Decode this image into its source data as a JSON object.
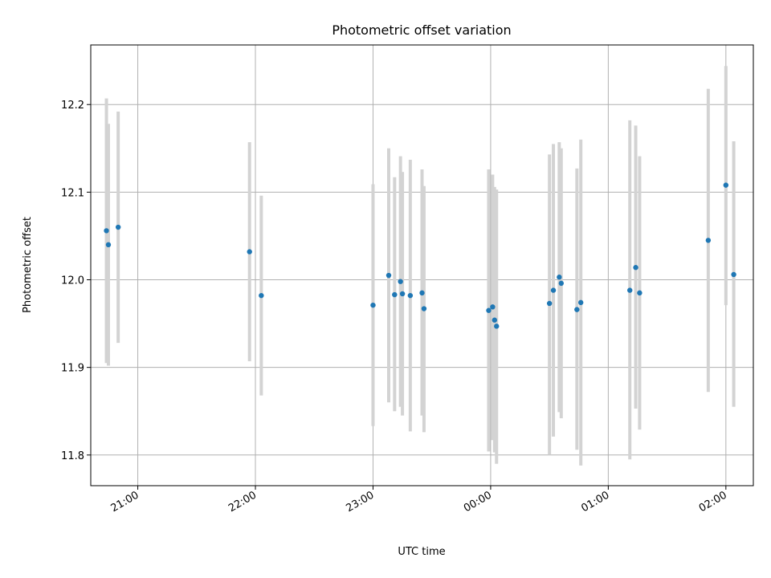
{
  "chart_data": {
    "type": "scatter",
    "title": "Photometric offset variation",
    "xlabel": "UTC time",
    "ylabel": "Photometric offset",
    "x_axis": "time",
    "x_range": [
      "20:36",
      "02:14"
    ],
    "ylim": [
      11.765,
      12.268
    ],
    "x_ticks": [
      {
        "t": "21:00",
        "label": "21:00"
      },
      {
        "t": "22:00",
        "label": "22:00"
      },
      {
        "t": "23:00",
        "label": "23:00"
      },
      {
        "t": "00:00",
        "label": "00:00"
      },
      {
        "t": "01:00",
        "label": "01:00"
      },
      {
        "t": "02:00",
        "label": "02:00"
      }
    ],
    "y_ticks": [
      {
        "v": 11.8,
        "label": "11.8"
      },
      {
        "v": 11.9,
        "label": "11.9"
      },
      {
        "v": 12.0,
        "label": "12.0"
      },
      {
        "v": 12.1,
        "label": "12.1"
      },
      {
        "v": 12.2,
        "label": "12.2"
      }
    ],
    "grid": true,
    "point_color": "#1f77b4",
    "errorbar_color": "#d3d3d3",
    "points": [
      {
        "t": "20:44",
        "y": 12.056,
        "lo": 11.905,
        "hi": 12.207
      },
      {
        "t": "20:45",
        "y": 12.04,
        "lo": 11.902,
        "hi": 12.178
      },
      {
        "t": "20:50",
        "y": 12.06,
        "lo": 11.928,
        "hi": 12.192
      },
      {
        "t": "21:57",
        "y": 12.032,
        "lo": 11.907,
        "hi": 12.157
      },
      {
        "t": "22:03",
        "y": 11.982,
        "lo": 11.868,
        "hi": 12.096
      },
      {
        "t": "23:00",
        "y": 11.971,
        "lo": 11.833,
        "hi": 12.109
      },
      {
        "t": "23:08",
        "y": 12.005,
        "lo": 11.86,
        "hi": 12.15
      },
      {
        "t": "23:11",
        "y": 11.983,
        "lo": 11.85,
        "hi": 12.117
      },
      {
        "t": "23:14",
        "y": 11.998,
        "lo": 11.855,
        "hi": 12.141
      },
      {
        "t": "23:15",
        "y": 11.984,
        "lo": 11.845,
        "hi": 12.123
      },
      {
        "t": "23:19",
        "y": 11.982,
        "lo": 11.827,
        "hi": 12.137
      },
      {
        "t": "23:25",
        "y": 11.985,
        "lo": 11.845,
        "hi": 12.126
      },
      {
        "t": "23:26",
        "y": 11.967,
        "lo": 11.826,
        "hi": 12.107
      },
      {
        "t": "23:59",
        "y": 11.965,
        "lo": 11.804,
        "hi": 12.126
      },
      {
        "t": "00:01",
        "y": 11.969,
        "lo": 11.817,
        "hi": 12.12
      },
      {
        "t": "00:02",
        "y": 11.954,
        "lo": 11.803,
        "hi": 12.106
      },
      {
        "t": "00:03",
        "y": 11.947,
        "lo": 11.79,
        "hi": 12.103
      },
      {
        "t": "00:30",
        "y": 11.973,
        "lo": 11.8,
        "hi": 12.143
      },
      {
        "t": "00:32",
        "y": 11.988,
        "lo": 11.821,
        "hi": 12.155
      },
      {
        "t": "00:35",
        "y": 12.003,
        "lo": 11.849,
        "hi": 12.157
      },
      {
        "t": "00:36",
        "y": 11.996,
        "lo": 11.842,
        "hi": 12.15
      },
      {
        "t": "00:44",
        "y": 11.966,
        "lo": 11.806,
        "hi": 12.127
      },
      {
        "t": "00:46",
        "y": 11.974,
        "lo": 11.788,
        "hi": 12.16
      },
      {
        "t": "01:11",
        "y": 11.988,
        "lo": 11.795,
        "hi": 12.182
      },
      {
        "t": "01:14",
        "y": 12.014,
        "lo": 11.853,
        "hi": 12.176
      },
      {
        "t": "01:16",
        "y": 11.985,
        "lo": 11.829,
        "hi": 12.141
      },
      {
        "t": "01:51",
        "y": 12.045,
        "lo": 11.872,
        "hi": 12.218
      },
      {
        "t": "02:00",
        "y": 12.108,
        "lo": 11.971,
        "hi": 12.244
      },
      {
        "t": "02:04",
        "y": 12.006,
        "lo": 11.855,
        "hi": 12.158
      }
    ]
  }
}
